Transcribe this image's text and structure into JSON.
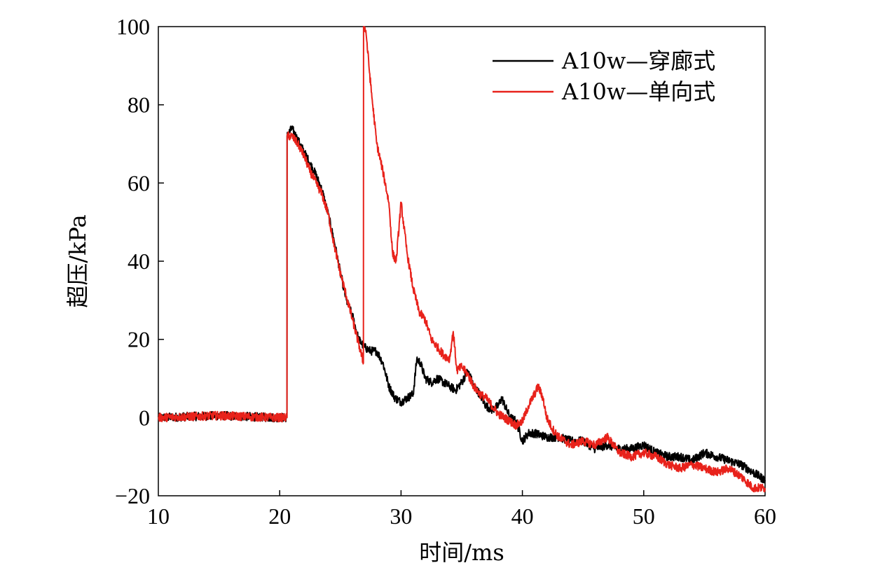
{
  "chart_data": {
    "type": "line",
    "xlabel": "时间/ms",
    "ylabel": "超压/kPa",
    "xlim": [
      10,
      60
    ],
    "ylim": [
      -20,
      100
    ],
    "xticks": [
      10,
      20,
      30,
      40,
      50,
      60
    ],
    "yticks": [
      -20,
      0,
      20,
      40,
      60,
      80,
      100
    ],
    "xtick_labels": [
      "10",
      "20",
      "30",
      "40",
      "50",
      "60"
    ],
    "ytick_labels": [
      "−20",
      "0",
      "20",
      "40",
      "60",
      "80",
      "100"
    ],
    "legend_position": "top-right",
    "grid": false,
    "series": [
      {
        "name": "A10w—穿廊式",
        "color": "#000000",
        "x": [
          10,
          15,
          19.5,
          20.6,
          20.61,
          21,
          21.5,
          22,
          22.5,
          23,
          23.5,
          24,
          24.5,
          25,
          25.5,
          26,
          26.5,
          27,
          27.5,
          28,
          28.5,
          29,
          29.5,
          30,
          30.5,
          31,
          31.3,
          31.6,
          32,
          32.5,
          33,
          33.5,
          34,
          34.5,
          35,
          35.5,
          36,
          36.5,
          37,
          37.5,
          38,
          38.3,
          38.7,
          39,
          39.5,
          40,
          40.5,
          41,
          42,
          43,
          44,
          45,
          46,
          47,
          48,
          49,
          50,
          51,
          52,
          53,
          54,
          55,
          56,
          57,
          58,
          59,
          60
        ],
        "y": [
          0,
          0.5,
          0,
          0,
          72,
          74,
          71,
          68,
          65,
          62,
          58,
          52,
          45,
          37,
          30,
          26,
          20,
          18,
          17,
          17,
          14,
          8,
          5,
          4,
          5,
          6,
          15,
          14,
          10,
          9,
          10,
          9,
          8,
          7,
          9,
          12,
          8,
          6,
          3,
          2,
          3,
          5,
          2,
          0,
          -1,
          -6,
          -4,
          -4,
          -5,
          -5,
          -6,
          -6,
          -8,
          -7,
          -8,
          -8,
          -7,
          -9,
          -10,
          -10,
          -11,
          -9,
          -10,
          -11,
          -12,
          -14,
          -16
        ]
      },
      {
        "name": "A10w—单向式",
        "color": "#e8221b",
        "x": [
          10,
          15,
          19.5,
          20.6,
          20.61,
          21,
          21.5,
          22,
          22.5,
          23,
          23.5,
          24,
          24.5,
          25,
          25.5,
          26,
          26.5,
          26.9,
          26.91,
          27.1,
          27.5,
          28,
          28.5,
          29,
          29.3,
          29.6,
          30,
          30.5,
          31,
          31.5,
          32,
          32.5,
          33,
          33.5,
          34,
          34.3,
          34.6,
          35,
          35.5,
          36,
          36.5,
          37,
          37.5,
          38,
          38.5,
          39,
          39.5,
          40,
          40.5,
          41,
          41.3,
          41.7,
          42,
          42.5,
          43,
          44,
          45,
          46,
          47,
          48,
          49,
          50,
          51,
          52,
          53,
          54,
          55,
          56,
          57,
          58,
          59,
          60
        ],
        "y": [
          0,
          0.5,
          0,
          0,
          72,
          72,
          70,
          67,
          63,
          60,
          57,
          52,
          44,
          37,
          31,
          25,
          19,
          14,
          100,
          99,
          85,
          70,
          63,
          55,
          42,
          40,
          55,
          42,
          33,
          27,
          25,
          20,
          18,
          16,
          15,
          22,
          12,
          13,
          11,
          8,
          6,
          5,
          3,
          1,
          0,
          -1,
          -2,
          -1,
          3,
          6,
          8,
          5,
          0,
          -3,
          -5,
          -7,
          -6,
          -7,
          -5,
          -9,
          -10,
          -9,
          -10,
          -12,
          -13,
          -12,
          -13,
          -14,
          -13,
          -15,
          -18,
          -18
        ]
      }
    ]
  }
}
